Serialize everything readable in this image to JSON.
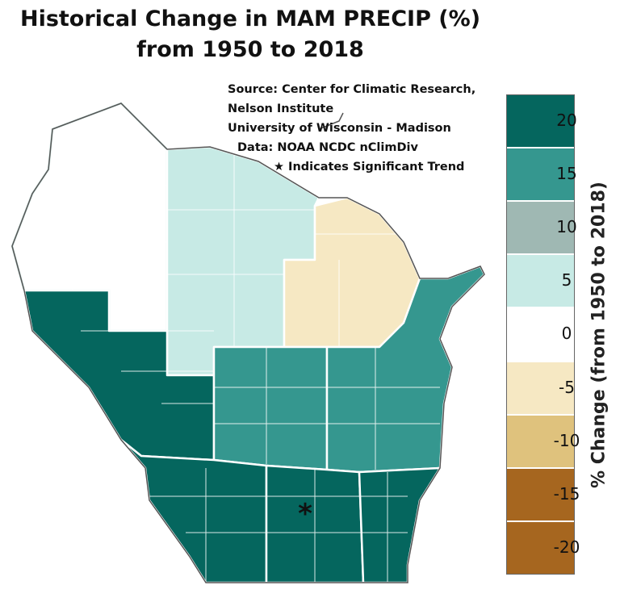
{
  "title": {
    "line1": "Historical Change in MAM PRECIP (%)",
    "line2": "from 1950 to 2018"
  },
  "source": {
    "line1": "Source:  Center for Climatic Research,",
    "line2": "Nelson Institute",
    "line3": "University of Wisconsin - Madison",
    "line4": "Data: NOAA NCDC nClimDiv",
    "line5": "★ Indicates Significant Trend"
  },
  "chart_data": {
    "type": "choropleth",
    "variable": "MAM PRECIP % change",
    "legend": {
      "label": "% Change (from 1950 to 2018)",
      "bins": [
        {
          "label": "20",
          "color": "#05665e"
        },
        {
          "label": "15",
          "color": "#35978f"
        },
        {
          "label": "10",
          "color": "#9fb8b3"
        },
        {
          "label": "5",
          "color": "#c7eae5"
        },
        {
          "label": "0",
          "color": "#ffffff"
        },
        {
          "label": "-5",
          "color": "#f6e8c3"
        },
        {
          "label": "-10",
          "color": "#dfc27d"
        },
        {
          "label": "-15",
          "color": "#a6661f"
        },
        {
          "label": "-20",
          "color": "#a6661f"
        }
      ]
    },
    "regions": [
      {
        "division": "Northwest",
        "bin": "0",
        "significant": false
      },
      {
        "division": "North Central",
        "bin": "5",
        "significant": false
      },
      {
        "division": "Northeast",
        "bin": "-5",
        "significant": false
      },
      {
        "division": "West Central",
        "bin": "20",
        "significant": false
      },
      {
        "division": "Central",
        "bin": "15",
        "significant": false
      },
      {
        "division": "East Central",
        "bin": "15",
        "significant": false
      },
      {
        "division": "Southwest",
        "bin": "20",
        "significant": false
      },
      {
        "division": "South Central",
        "bin": "20",
        "significant": true
      },
      {
        "division": "Southeast",
        "bin": "20",
        "significant": false
      }
    ]
  }
}
